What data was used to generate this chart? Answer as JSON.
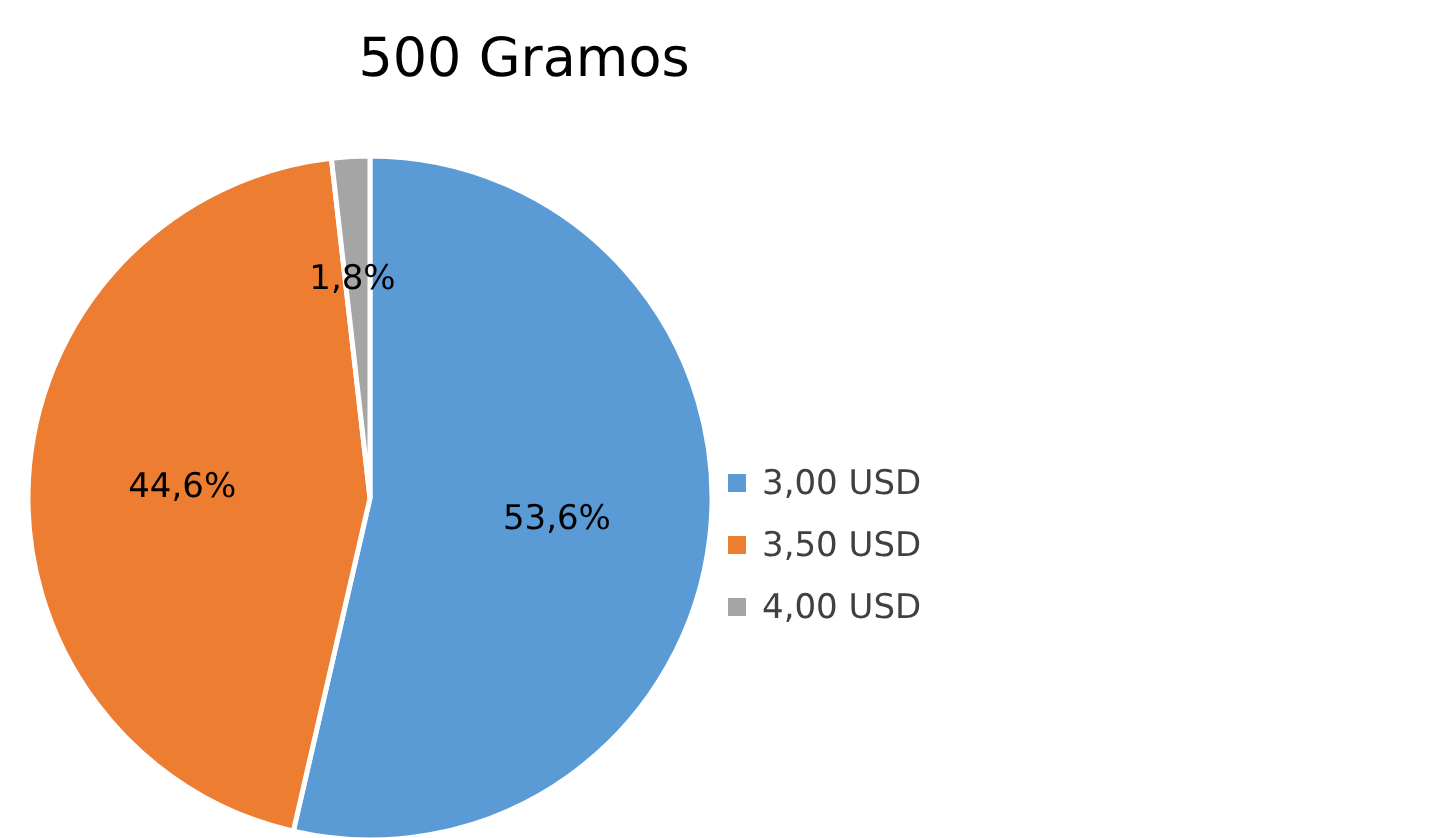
{
  "chart_data": {
    "type": "pie",
    "title": "500 Gramos",
    "categories": [
      "3,00 USD",
      "3,50 USD",
      "4,00 USD"
    ],
    "values": [
      53.6,
      44.6,
      1.8
    ],
    "colors": [
      "#5b9bd5",
      "#ed7d31",
      "#a5a5a5"
    ],
    "value_labels": [
      "53,6%",
      "44,6%",
      "1,8%"
    ],
    "legend": "right"
  }
}
